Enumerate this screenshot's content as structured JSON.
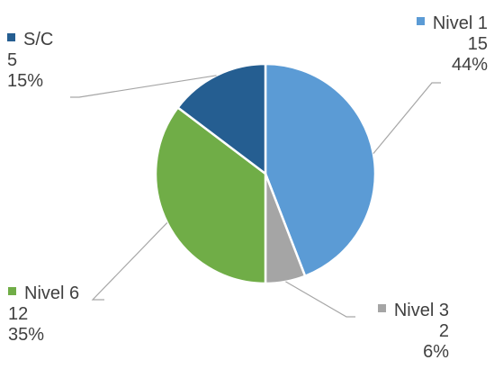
{
  "chart_data": {
    "type": "pie",
    "slices": [
      {
        "label": "Nivel 1",
        "value": 15,
        "percent": "44%",
        "color": "#5B9BD5"
      },
      {
        "label": "Nivel 3",
        "value": 2,
        "percent": "6%",
        "color": "#A5A5A5"
      },
      {
        "label": "Nivel 6",
        "value": 12,
        "percent": "35%",
        "color": "#70AD47"
      },
      {
        "label": "S/C",
        "value": 5,
        "percent": "15%",
        "color": "#255E91"
      }
    ],
    "start_angle_deg": 0,
    "direction": "clockwise",
    "legend": "none",
    "data_labels": "outside-with-leader-lines"
  }
}
